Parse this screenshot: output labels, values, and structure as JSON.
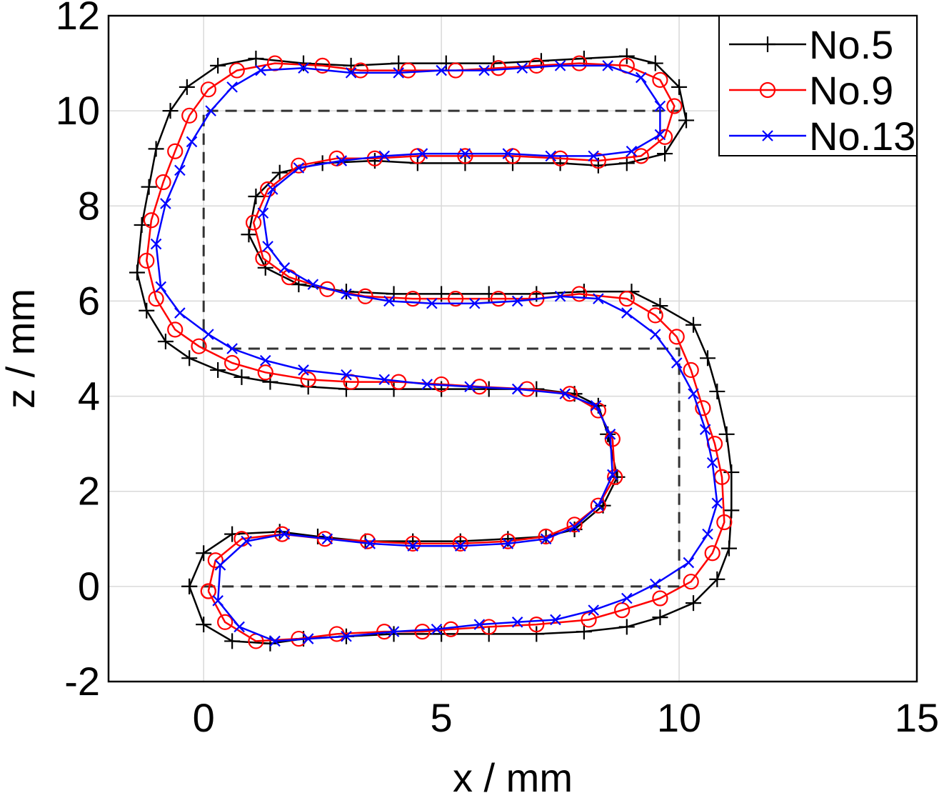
{
  "chart_data": {
    "type": "line",
    "xlabel": "x / mm",
    "ylabel": "z / mm",
    "xlim": [
      -2,
      15
    ],
    "ylim": [
      -2,
      12
    ],
    "x_ticks": [
      "0",
      "5",
      "10",
      "15"
    ],
    "y_ticks": [
      "-2",
      "0",
      "2",
      "4",
      "6",
      "8",
      "10",
      "12"
    ],
    "grid": true,
    "legend_position": "top-right",
    "reference_path": {
      "style": "dashed",
      "color": "#333333",
      "points": [
        [
          0,
          0
        ],
        [
          10,
          0
        ],
        [
          10,
          5
        ],
        [
          0,
          5
        ],
        [
          0,
          10
        ],
        [
          10,
          10
        ]
      ]
    },
    "series": [
      {
        "name": "No.5",
        "color": "#000000",
        "marker": "plus",
        "points": [
          [
            -0.3,
            0
          ],
          [
            0,
            0.7
          ],
          [
            0.6,
            1.1
          ],
          [
            1.6,
            1.15
          ],
          [
            2.4,
            1.05
          ],
          [
            3.4,
            0.95
          ],
          [
            4.4,
            0.95
          ],
          [
            5.4,
            0.95
          ],
          [
            6.4,
            1.0
          ],
          [
            7.2,
            1.05
          ],
          [
            7.8,
            1.2
          ],
          [
            8.4,
            1.7
          ],
          [
            8.7,
            2.3
          ],
          [
            8.5,
            3.2
          ],
          [
            8.3,
            3.8
          ],
          [
            7.8,
            4.05
          ],
          [
            7.0,
            4.15
          ],
          [
            6.0,
            4.15
          ],
          [
            5.0,
            4.15
          ],
          [
            4.0,
            4.15
          ],
          [
            3.0,
            4.15
          ],
          [
            2.2,
            4.2
          ],
          [
            1.4,
            4.3
          ],
          [
            0.8,
            4.4
          ],
          [
            0.3,
            4.55
          ],
          [
            -0.3,
            4.8
          ],
          [
            -0.8,
            5.15
          ],
          [
            -1.2,
            5.8
          ],
          [
            -1.4,
            6.6
          ],
          [
            -1.3,
            7.6
          ],
          [
            -1.15,
            8.4
          ],
          [
            -1.0,
            9.2
          ],
          [
            -0.7,
            10.0
          ],
          [
            -0.35,
            10.5
          ],
          [
            0.3,
            10.95
          ],
          [
            1.1,
            11.1
          ],
          [
            2.1,
            11.0
          ],
          [
            3.1,
            10.95
          ],
          [
            4.1,
            11.0
          ],
          [
            5.1,
            11.0
          ],
          [
            6.1,
            11.0
          ],
          [
            7.1,
            11.05
          ],
          [
            8.0,
            11.1
          ],
          [
            8.9,
            11.15
          ],
          [
            9.5,
            11.0
          ],
          [
            10.0,
            10.5
          ],
          [
            10.15,
            9.8
          ],
          [
            9.7,
            9.1
          ],
          [
            8.9,
            8.9
          ],
          [
            8.3,
            8.85
          ],
          [
            7.5,
            8.9
          ],
          [
            6.5,
            8.9
          ],
          [
            5.5,
            8.9
          ],
          [
            4.5,
            8.9
          ],
          [
            3.6,
            8.95
          ],
          [
            2.5,
            8.9
          ],
          [
            1.6,
            8.7
          ],
          [
            1.1,
            8.2
          ],
          [
            0.95,
            7.4
          ],
          [
            1.3,
            6.7
          ],
          [
            2.0,
            6.35
          ],
          [
            3.0,
            6.2
          ],
          [
            4.0,
            6.15
          ],
          [
            5.0,
            6.15
          ],
          [
            6.0,
            6.15
          ],
          [
            7.0,
            6.15
          ],
          [
            8.0,
            6.2
          ],
          [
            9.0,
            6.2
          ],
          [
            9.6,
            5.9
          ],
          [
            10.3,
            5.5
          ],
          [
            10.6,
            4.8
          ],
          [
            10.8,
            4.1
          ],
          [
            11.0,
            3.2
          ],
          [
            11.1,
            2.4
          ],
          [
            11.1,
            1.6
          ],
          [
            11.05,
            0.8
          ],
          [
            10.8,
            0.15
          ],
          [
            10.3,
            -0.35
          ],
          [
            9.6,
            -0.65
          ],
          [
            8.9,
            -0.85
          ],
          [
            8.0,
            -0.95
          ],
          [
            7.0,
            -1.0
          ],
          [
            6.0,
            -1.0
          ],
          [
            5.0,
            -1.0
          ],
          [
            4.0,
            -1.0
          ],
          [
            3.0,
            -1.05
          ],
          [
            2.1,
            -1.1
          ],
          [
            1.4,
            -1.2
          ],
          [
            0.6,
            -1.15
          ],
          [
            0.0,
            -0.8
          ],
          [
            -0.3,
            0
          ]
        ]
      },
      {
        "name": "No.9",
        "color": "#ff0000",
        "marker": "circle",
        "points": [
          [
            0.1,
            -0.1
          ],
          [
            0.25,
            0.55
          ],
          [
            0.8,
            1.0
          ],
          [
            1.65,
            1.1
          ],
          [
            2.55,
            1.0
          ],
          [
            3.45,
            0.95
          ],
          [
            4.4,
            0.9
          ],
          [
            5.4,
            0.9
          ],
          [
            6.4,
            0.95
          ],
          [
            7.2,
            1.05
          ],
          [
            7.8,
            1.3
          ],
          [
            8.3,
            1.7
          ],
          [
            8.65,
            2.3
          ],
          [
            8.6,
            3.1
          ],
          [
            8.3,
            3.7
          ],
          [
            7.7,
            4.05
          ],
          [
            6.8,
            4.15
          ],
          [
            5.8,
            4.2
          ],
          [
            5.0,
            4.25
          ],
          [
            4.1,
            4.3
          ],
          [
            3.1,
            4.3
          ],
          [
            2.2,
            4.35
          ],
          [
            1.3,
            4.5
          ],
          [
            0.6,
            4.7
          ],
          [
            -0.1,
            5.05
          ],
          [
            -0.6,
            5.4
          ],
          [
            -1.0,
            6.05
          ],
          [
            -1.2,
            6.85
          ],
          [
            -1.1,
            7.7
          ],
          [
            -0.85,
            8.5
          ],
          [
            -0.6,
            9.15
          ],
          [
            -0.3,
            9.9
          ],
          [
            0.1,
            10.45
          ],
          [
            0.7,
            10.85
          ],
          [
            1.5,
            11.0
          ],
          [
            2.5,
            10.95
          ],
          [
            3.3,
            10.85
          ],
          [
            4.3,
            10.85
          ],
          [
            5.3,
            10.85
          ],
          [
            6.2,
            10.9
          ],
          [
            7.0,
            10.95
          ],
          [
            7.9,
            11.0
          ],
          [
            8.9,
            10.95
          ],
          [
            9.6,
            10.65
          ],
          [
            9.9,
            10.1
          ],
          [
            9.7,
            9.45
          ],
          [
            9.2,
            9.05
          ],
          [
            8.3,
            8.95
          ],
          [
            7.5,
            9.0
          ],
          [
            6.5,
            9.05
          ],
          [
            5.5,
            9.05
          ],
          [
            4.5,
            9.05
          ],
          [
            3.6,
            9.0
          ],
          [
            2.8,
            9.0
          ],
          [
            2.0,
            8.85
          ],
          [
            1.35,
            8.35
          ],
          [
            1.05,
            7.65
          ],
          [
            1.25,
            6.9
          ],
          [
            1.8,
            6.5
          ],
          [
            2.6,
            6.25
          ],
          [
            3.4,
            6.1
          ],
          [
            4.4,
            6.05
          ],
          [
            5.3,
            6.05
          ],
          [
            6.2,
            6.05
          ],
          [
            7.0,
            6.05
          ],
          [
            7.9,
            6.15
          ],
          [
            8.9,
            6.05
          ],
          [
            9.5,
            5.7
          ],
          [
            9.95,
            5.25
          ],
          [
            10.25,
            4.55
          ],
          [
            10.5,
            3.75
          ],
          [
            10.75,
            3.0
          ],
          [
            10.9,
            2.3
          ],
          [
            10.95,
            1.35
          ],
          [
            10.7,
            0.7
          ],
          [
            10.25,
            0.1
          ],
          [
            9.6,
            -0.25
          ],
          [
            8.8,
            -0.5
          ],
          [
            8.1,
            -0.7
          ],
          [
            7.0,
            -0.8
          ],
          [
            6.0,
            -0.85
          ],
          [
            5.2,
            -0.9
          ],
          [
            4.6,
            -0.95
          ],
          [
            3.8,
            -0.95
          ],
          [
            2.8,
            -1.0
          ],
          [
            2.0,
            -1.1
          ],
          [
            1.1,
            -1.15
          ],
          [
            0.45,
            -0.75
          ],
          [
            0.1,
            -0.1
          ]
        ]
      },
      {
        "name": "No.13",
        "color": "#0000ff",
        "marker": "cross",
        "points": [
          [
            0.35,
            0.45
          ],
          [
            0.9,
            0.95
          ],
          [
            1.7,
            1.1
          ],
          [
            2.6,
            1.0
          ],
          [
            3.5,
            0.9
          ],
          [
            4.4,
            0.85
          ],
          [
            5.4,
            0.85
          ],
          [
            6.4,
            0.9
          ],
          [
            7.2,
            1.0
          ],
          [
            7.8,
            1.25
          ],
          [
            8.3,
            1.7
          ],
          [
            8.6,
            2.35
          ],
          [
            8.55,
            3.2
          ],
          [
            8.25,
            3.8
          ],
          [
            7.6,
            4.05
          ],
          [
            6.6,
            4.15
          ],
          [
            5.6,
            4.2
          ],
          [
            4.7,
            4.25
          ],
          [
            3.8,
            4.35
          ],
          [
            3.0,
            4.45
          ],
          [
            2.1,
            4.55
          ],
          [
            1.3,
            4.75
          ],
          [
            0.6,
            5.0
          ],
          [
            0.1,
            5.3
          ],
          [
            -0.5,
            5.75
          ],
          [
            -0.9,
            6.3
          ],
          [
            -1.0,
            7.2
          ],
          [
            -0.8,
            8.05
          ],
          [
            -0.5,
            8.75
          ],
          [
            -0.25,
            9.35
          ],
          [
            0.15,
            10.0
          ],
          [
            0.6,
            10.5
          ],
          [
            1.2,
            10.85
          ],
          [
            2.1,
            10.9
          ],
          [
            3.1,
            10.8
          ],
          [
            4.1,
            10.8
          ],
          [
            5.0,
            10.85
          ],
          [
            5.9,
            10.85
          ],
          [
            6.7,
            10.9
          ],
          [
            7.5,
            10.95
          ],
          [
            8.5,
            10.95
          ],
          [
            9.2,
            10.7
          ],
          [
            9.6,
            10.1
          ],
          [
            9.6,
            9.5
          ],
          [
            9.0,
            9.15
          ],
          [
            8.2,
            9.05
          ],
          [
            7.3,
            9.05
          ],
          [
            6.4,
            9.1
          ],
          [
            5.5,
            9.1
          ],
          [
            4.6,
            9.1
          ],
          [
            3.8,
            9.05
          ],
          [
            2.9,
            8.95
          ],
          [
            2.0,
            8.8
          ],
          [
            1.45,
            8.35
          ],
          [
            1.25,
            7.85
          ],
          [
            1.35,
            7.15
          ],
          [
            1.7,
            6.7
          ],
          [
            2.3,
            6.35
          ],
          [
            3.0,
            6.15
          ],
          [
            3.9,
            6.0
          ],
          [
            4.8,
            5.95
          ],
          [
            5.7,
            5.95
          ],
          [
            6.6,
            6.0
          ],
          [
            7.5,
            6.1
          ],
          [
            8.3,
            6.05
          ],
          [
            8.9,
            5.75
          ],
          [
            9.5,
            5.3
          ],
          [
            9.95,
            4.7
          ],
          [
            10.3,
            4.05
          ],
          [
            10.55,
            3.3
          ],
          [
            10.7,
            2.6
          ],
          [
            10.8,
            1.75
          ],
          [
            10.6,
            1.1
          ],
          [
            10.2,
            0.5
          ],
          [
            9.5,
            0.05
          ],
          [
            8.9,
            -0.25
          ],
          [
            8.2,
            -0.5
          ],
          [
            7.4,
            -0.7
          ],
          [
            6.6,
            -0.75
          ],
          [
            5.8,
            -0.8
          ],
          [
            4.9,
            -0.9
          ],
          [
            4.0,
            -0.95
          ],
          [
            3.0,
            -1.05
          ],
          [
            2.2,
            -1.1
          ],
          [
            1.5,
            -1.15
          ],
          [
            0.75,
            -0.85
          ],
          [
            0.3,
            -0.3
          ],
          [
            0.35,
            0.45
          ]
        ]
      }
    ]
  }
}
